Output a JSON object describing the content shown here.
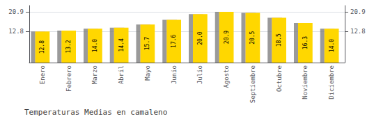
{
  "chart_data": {
    "type": "bar",
    "title": "Temperaturas Medias en camaleno",
    "categories": [
      "Enero",
      "Febrero",
      "Marzo",
      "Abril",
      "Mayo",
      "Junio",
      "Julio",
      "Agosto",
      "Septiembre",
      "Octubre",
      "Noviembre",
      "Diciembre"
    ],
    "values": [
      12.8,
      13.2,
      14.0,
      14.4,
      15.7,
      17.6,
      20.0,
      20.9,
      20.5,
      18.5,
      16.3,
      14.0
    ],
    "value_labels": [
      "12.8",
      "13.2",
      "14.0",
      "14.4",
      "15.7",
      "17.6",
      "20.0",
      "20.9",
      "20.5",
      "18.5",
      "16.3",
      "14.0"
    ],
    "color": "#FFD700",
    "ylim": [
      0,
      23.5
    ],
    "yticks": [
      12.8,
      20.9
    ],
    "grid": true,
    "data_labels": true
  }
}
